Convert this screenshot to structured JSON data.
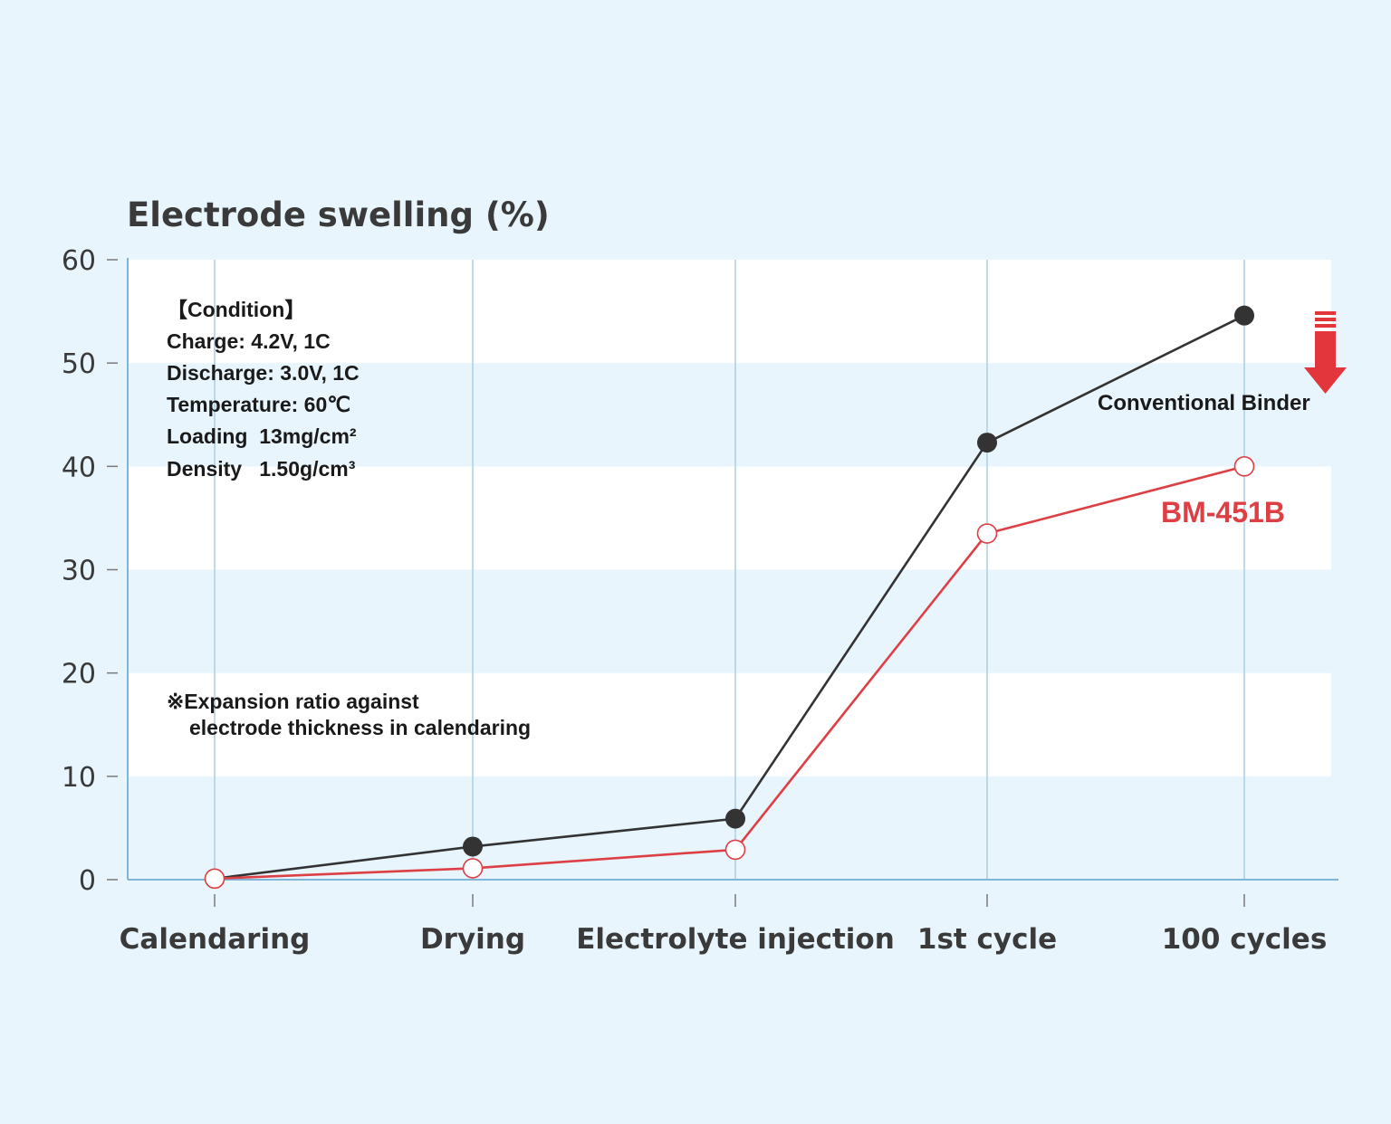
{
  "chart_data": {
    "type": "line",
    "ylabel": "Electrode swelling (%)",
    "ylim": [
      0,
      60
    ],
    "yticks": [
      "0",
      "10",
      "20",
      "30",
      "40",
      "50",
      "60"
    ],
    "categories": [
      "Calendaring",
      "Drying",
      "Electrolyte injection",
      "1st cycle",
      "100 cycles"
    ],
    "series": [
      {
        "name": "Conventional Binder",
        "values": [
          0.1,
          3.2,
          5.9,
          42.3,
          54.6
        ],
        "color": "#333333",
        "marker": "filled-circle"
      },
      {
        "name": "BM-451B",
        "values": [
          0.1,
          1.1,
          2.9,
          33.5,
          40.0
        ],
        "color": "#dd3f44",
        "marker": "hollow-circle"
      }
    ],
    "grid": "horizontal bands alternating white / light blue; vertical lines at each category",
    "legend": "inline labels near the right end of each series",
    "arrow_color": "#e3363c",
    "annotations": {
      "conditions": [
        "【Condition】",
        "Charge: 4.2V, 1C",
        "Discharge: 3.0V, 1C",
        "Temperature: 60℃",
        "Loading  13mg/cm²",
        "Density   1.50g/cm³"
      ],
      "footnote": [
        "※Expansion ratio against",
        "electrode thickness in calendaring"
      ]
    }
  }
}
